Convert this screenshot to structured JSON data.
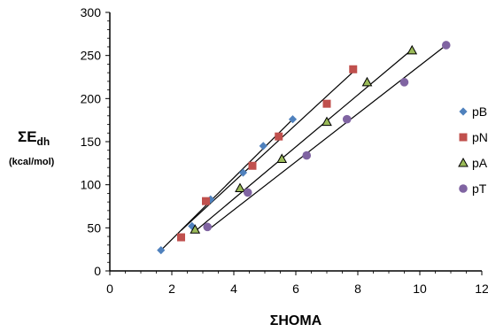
{
  "chart_data": {
    "type": "scatter",
    "title": "",
    "xlabel": "ΣHOMA",
    "ylabel": "ΣE",
    "ylabel_subscript": "dh",
    "ylabel_unit": "(kcal/mol)",
    "xlim": [
      0,
      12
    ],
    "ylim": [
      0,
      300
    ],
    "xticks": [
      0,
      2,
      4,
      6,
      8,
      10,
      12
    ],
    "yticks": [
      0,
      50,
      100,
      150,
      200,
      250,
      300
    ],
    "grid": false,
    "legend_position": "right",
    "series": [
      {
        "name": "pB",
        "marker": "diamond",
        "color": "#4f81bd",
        "points": [
          [
            1.65,
            24
          ],
          [
            2.65,
            52
          ],
          [
            3.25,
            83
          ],
          [
            4.3,
            114
          ],
          [
            4.95,
            145
          ],
          [
            5.9,
            176
          ]
        ],
        "trendline": [
          [
            1.65,
            24
          ],
          [
            5.9,
            176
          ]
        ]
      },
      {
        "name": "pN",
        "marker": "square",
        "color": "#c0504d",
        "points": [
          [
            2.3,
            39
          ],
          [
            3.1,
            81
          ],
          [
            4.6,
            122
          ],
          [
            5.45,
            156
          ],
          [
            7.0,
            194
          ],
          [
            7.85,
            234
          ]
        ],
        "trendline": [
          [
            2.3,
            47
          ],
          [
            7.85,
            231
          ]
        ]
      },
      {
        "name": "pA",
        "marker": "triangle",
        "color": "#9bbb59",
        "points": [
          [
            2.75,
            48
          ],
          [
            4.2,
            96
          ],
          [
            5.55,
            130
          ],
          [
            7.0,
            173
          ],
          [
            8.3,
            219
          ],
          [
            9.75,
            256
          ]
        ],
        "trendline": [
          [
            2.75,
            46
          ],
          [
            9.75,
            257
          ]
        ]
      },
      {
        "name": "pT",
        "marker": "circle",
        "color": "#8064a2",
        "points": [
          [
            3.15,
            51
          ],
          [
            4.45,
            91
          ],
          [
            6.35,
            134
          ],
          [
            7.65,
            176
          ],
          [
            9.5,
            219
          ],
          [
            10.85,
            262
          ]
        ],
        "trendline": [
          [
            3.15,
            47
          ],
          [
            10.85,
            262
          ]
        ]
      }
    ]
  }
}
